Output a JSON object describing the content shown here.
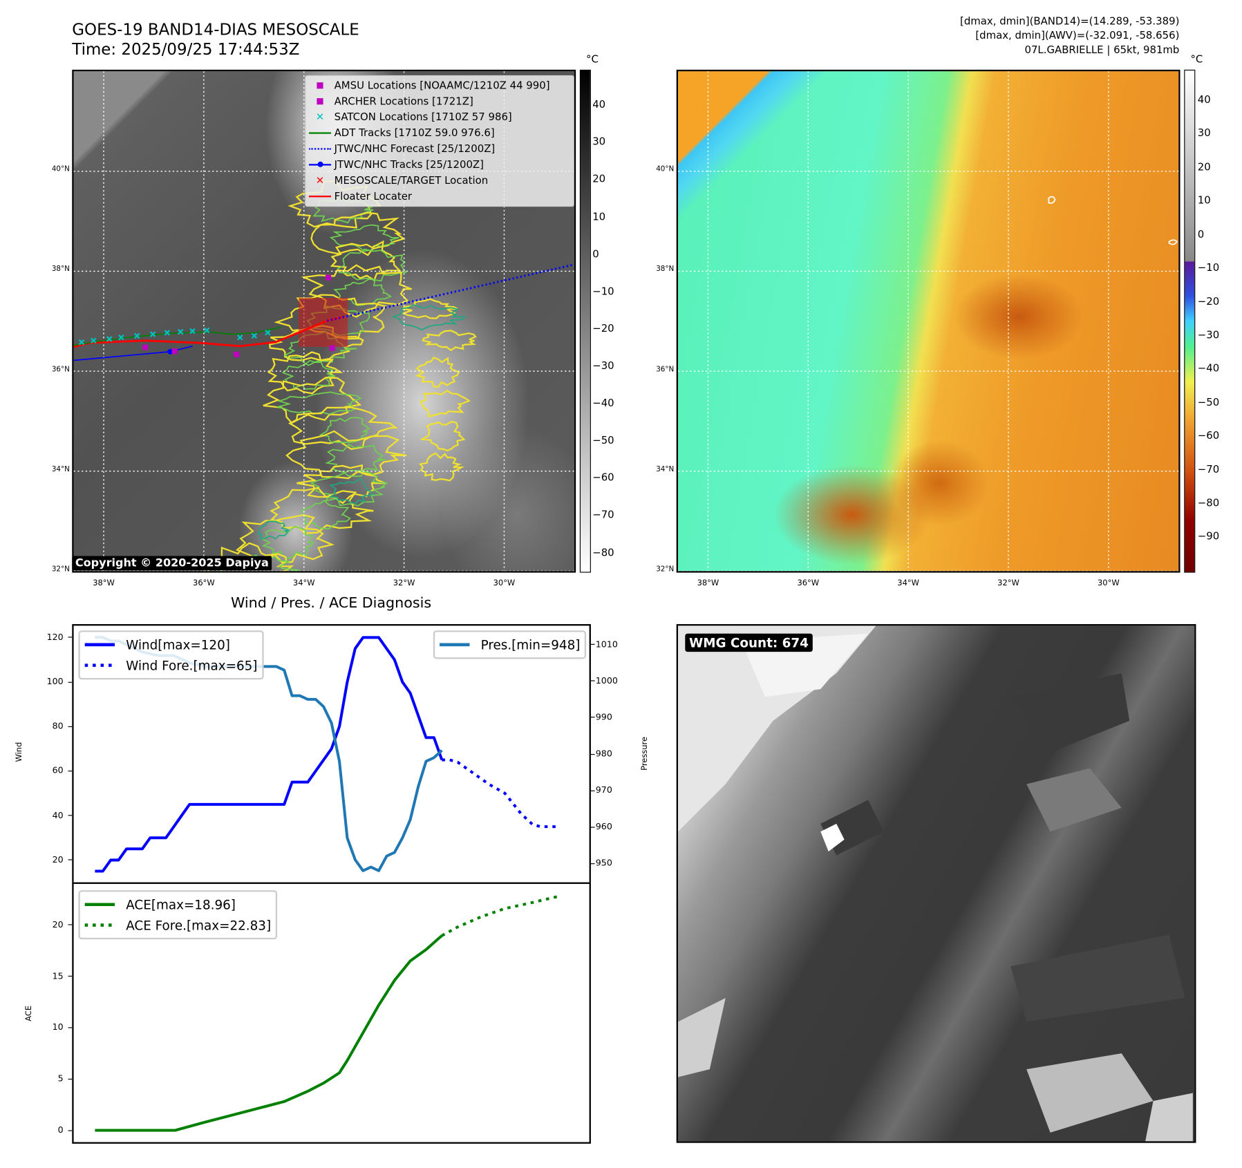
{
  "header": {
    "title": "GOES-19 BAND14-DIAS MESOSCALE",
    "time": "Time: 2025/09/25 17:44:53Z",
    "info": [
      "[dmax, dmin](BAND14)=(14.289, -53.389)",
      "[dmax, dmin](AWV)=(-32.091, -58.656)",
      "07L.GABRIELLE | 65kt, 981mb"
    ]
  },
  "maps": {
    "lat_ticks": [
      "40°N",
      "38°N",
      "36°N",
      "34°N",
      "32°N"
    ],
    "lat_values": [
      40,
      38,
      36,
      34,
      32
    ],
    "lon_ticks": [
      "38°W",
      "36°W",
      "34°W",
      "32°W",
      "30°W"
    ],
    "lon_values": [
      -38,
      -36,
      -34,
      -32,
      -30
    ],
    "lon_range": [
      -38.6,
      -28.6
    ],
    "lat_range": [
      32,
      42
    ],
    "copyright": "Copyright © 2020-2025 Dapiya",
    "legend": [
      {
        "label": "AMSU Locations [NOAAMC/1210Z 44 990]",
        "symbol": "square",
        "color": "#c000c0"
      },
      {
        "label": "ARCHER Locations [1721Z]",
        "symbol": "square",
        "color": "#c000c0"
      },
      {
        "label": "SATCON Locations [1710Z 57 986]",
        "symbol": "x",
        "color": "#00c0c0"
      },
      {
        "label": "ADT Tracks [1710Z 59.0 976.6]",
        "symbol": "line",
        "color": "#008000"
      },
      {
        "label": "JTWC/NHC Forecast [25/1200Z]",
        "symbol": "dotted",
        "color": "#0000ff"
      },
      {
        "label": "JTWC/NHC Tracks [25/1200Z]",
        "symbol": "line-dot",
        "color": "#0000ff"
      },
      {
        "label": "MESOSCALE/TARGET Location",
        "symbol": "x",
        "color": "#ff0000"
      },
      {
        "label": "Floater Locater",
        "symbol": "line",
        "color": "#ff0000"
      }
    ]
  },
  "colorbars": {
    "left": {
      "unit": "°C",
      "ticks": [
        40,
        30,
        20,
        10,
        0,
        -10,
        -20,
        -30,
        -40,
        -50,
        -60,
        -70,
        -80
      ],
      "range": [
        49.6,
        -85.2
      ]
    },
    "right": {
      "unit": "°C",
      "ticks": [
        40,
        30,
        20,
        10,
        0,
        -10,
        -20,
        -30,
        -40,
        -50,
        -60,
        -70,
        -80,
        -90
      ],
      "range": [
        49.2,
        -100.5
      ]
    }
  },
  "diagnosis_title": "Wind / Pres. / ACE Diagnosis",
  "wmg": {
    "label": "WMG Count: 674"
  },
  "chart_data": [
    {
      "type": "line",
      "title": "Wind / Pres. / ACE Diagnosis",
      "ylabel": "Wind",
      "y2label": "Pressure",
      "xlim": [
        -2.7,
        62.7
      ],
      "ylim": [
        10,
        125.3
      ],
      "y2lim": [
        944.8,
        1015.2
      ],
      "yticks": [
        20,
        40,
        60,
        80,
        100,
        120
      ],
      "y2ticks": [
        950,
        960,
        970,
        980,
        990,
        1000,
        1010
      ],
      "series": [
        {
          "name": "Wind[max=120]",
          "axis": "left",
          "style": "solid",
          "color": "#0000ff",
          "x": [
            0,
            1,
            2,
            3,
            4,
            6,
            7,
            9,
            12,
            24,
            25,
            27,
            30,
            31,
            32,
            33,
            34,
            36,
            38,
            39,
            40,
            42,
            43,
            44
          ],
          "values": [
            15,
            15,
            20,
            20,
            25,
            25,
            30,
            30,
            45,
            45,
            55,
            55,
            70,
            80,
            100,
            115,
            120,
            120,
            110,
            100,
            95,
            75,
            75,
            65
          ]
        },
        {
          "name": "Wind Fore.[max=65]",
          "axis": "left",
          "style": "dotted",
          "color": "#0000ff",
          "x": [
            44,
            45,
            46,
            48,
            50,
            52,
            54,
            55.5,
            56.5,
            59
          ],
          "values": [
            65,
            65,
            64,
            59,
            54,
            50,
            41,
            36,
            35,
            35
          ]
        },
        {
          "name": "Pres.[min=948]",
          "axis": "right",
          "style": "solid",
          "color": "#1f77b4",
          "x": [
            0,
            1,
            2,
            3,
            6,
            8,
            10,
            12,
            14,
            23,
            24,
            25,
            26,
            27,
            28,
            29,
            30,
            31,
            32,
            33,
            34,
            35,
            36,
            37,
            38,
            39,
            40,
            41,
            42,
            43,
            44
          ],
          "values": [
            1012,
            1012,
            1011,
            1011,
            1008,
            1007,
            1007,
            1005,
            1004,
            1004,
            1003,
            996,
            996,
            995,
            995,
            993,
            988.5,
            978,
            957,
            951,
            948,
            949,
            948,
            952,
            953,
            957,
            962,
            971,
            978,
            979,
            981
          ]
        }
      ],
      "legend": [
        "Wind[max=120]",
        "Wind Fore.[max=65]"
      ],
      "legend2": [
        "Pres.[min=948]"
      ]
    },
    {
      "type": "line",
      "ylabel": "ACE",
      "xlim": [
        -2.7,
        62.7
      ],
      "ylim": [
        -1.15,
        24
      ],
      "yticks": [
        0,
        5,
        10,
        15,
        20
      ],
      "series": [
        {
          "name": "ACE[max=18.96]",
          "style": "solid",
          "color": "#008000",
          "x": [
            0,
            10.2,
            14,
            18,
            24,
            27,
            29,
            31,
            32,
            34,
            36,
            38,
            40,
            42,
            44
          ],
          "values": [
            0,
            0,
            0.8,
            1.6,
            2.8,
            3.8,
            4.6,
            5.6,
            6.8,
            9.5,
            12.2,
            14.6,
            16.5,
            17.6,
            18.96
          ]
        },
        {
          "name": "ACE Fore.[max=22.83]",
          "style": "dotted",
          "color": "#008000",
          "x": [
            44,
            46,
            49,
            52,
            55,
            59
          ],
          "values": [
            18.96,
            19.8,
            20.8,
            21.6,
            22.1,
            22.83
          ]
        }
      ],
      "legend": [
        "ACE[max=18.96]",
        "ACE Fore.[max=22.83]"
      ]
    }
  ]
}
